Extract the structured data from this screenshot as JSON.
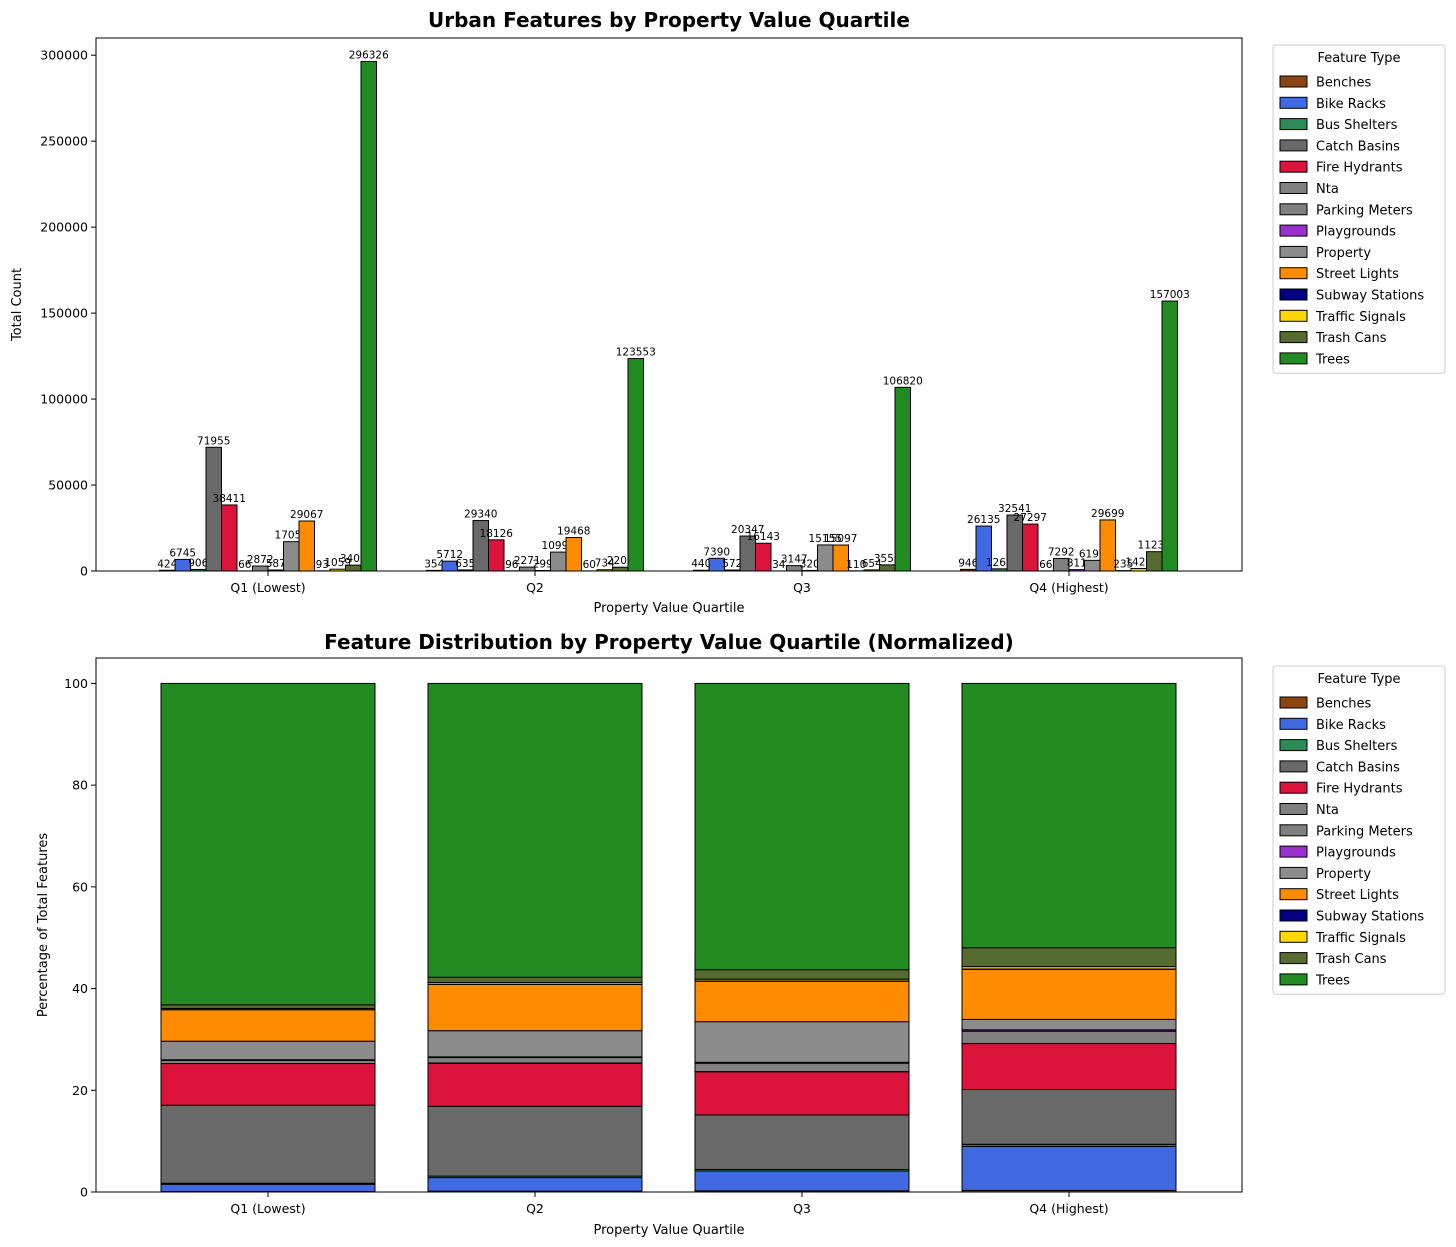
{
  "chart_data": [
    {
      "type": "bar",
      "title": "Urban Features by Property Value Quartile",
      "xlabel": "Property Value Quartile",
      "ylabel": "Total Count",
      "ylim": [
        0,
        310000
      ],
      "yticks": [
        0,
        50000,
        100000,
        150000,
        200000,
        250000,
        300000
      ],
      "categories": [
        "Q1 (Lowest)",
        "Q2",
        "Q3",
        "Q4 (Highest)"
      ],
      "legend_title": "Feature Type",
      "legend_position": "outside-right",
      "series": [
        {
          "name": "Benches",
          "color": "#8B4513",
          "values": [
            424,
            354,
            440,
            946
          ]
        },
        {
          "name": "Bike Racks",
          "color": "#4169E1",
          "values": [
            6745,
            5712,
            7390,
            26135
          ]
        },
        {
          "name": "Bus Shelters",
          "color": "#2E8B57",
          "values": [
            906,
            635,
            572,
            1268
          ]
        },
        {
          "name": "Catch Basins",
          "color": "#696969",
          "values": [
            71955,
            29340,
            20347,
            32541
          ]
        },
        {
          "name": "Fire Hydrants",
          "color": "#DC143C",
          "values": [
            38411,
            18126,
            16143,
            27297
          ]
        },
        {
          "name": "Nta",
          "color": "#808080",
          "values": [
            66,
            96,
            34,
            66
          ]
        },
        {
          "name": "Parking Meters",
          "color": "#808080",
          "values": [
            2872,
            2271,
            3147,
            7292
          ]
        },
        {
          "name": "Playgrounds",
          "color": "#9932CC",
          "values": [
            587,
            299,
            320,
            811
          ]
        },
        {
          "name": "Property",
          "color": "#8C8C8C",
          "values": [
            17057,
            10995,
            15155,
            6199
          ]
        },
        {
          "name": "Street Lights",
          "color": "#FF8C00",
          "values": [
            29067,
            19468,
            15097,
            29699
          ]
        },
        {
          "name": "Subway Stations",
          "color": "#000080",
          "values": [
            93,
            60,
            110,
            235
          ]
        },
        {
          "name": "Traffic Signals",
          "color": "#FFD700",
          "values": [
            1059,
            734,
            654,
            1428
          ]
        },
        {
          "name": "Trash Cans",
          "color": "#556B2F",
          "values": [
            3405,
            2206,
            3557,
            11234
          ]
        },
        {
          "name": "Trees",
          "color": "#228B22",
          "values": [
            296326,
            123553,
            106820,
            157003
          ]
        }
      ]
    },
    {
      "type": "bar",
      "stacked": true,
      "title": "Feature Distribution by Property Value Quartile (Normalized)",
      "xlabel": "Property Value Quartile",
      "ylabel": "Percentage of Total Features",
      "ylim": [
        0,
        105
      ],
      "yticks": [
        0,
        20,
        40,
        60,
        80,
        100
      ],
      "categories": [
        "Q1 (Lowest)",
        "Q2",
        "Q3",
        "Q4 (Highest)"
      ],
      "legend_title": "Feature Type",
      "legend_position": "outside-right",
      "note_values": "percent of total features per quartile, derived from the count series"
    }
  ]
}
